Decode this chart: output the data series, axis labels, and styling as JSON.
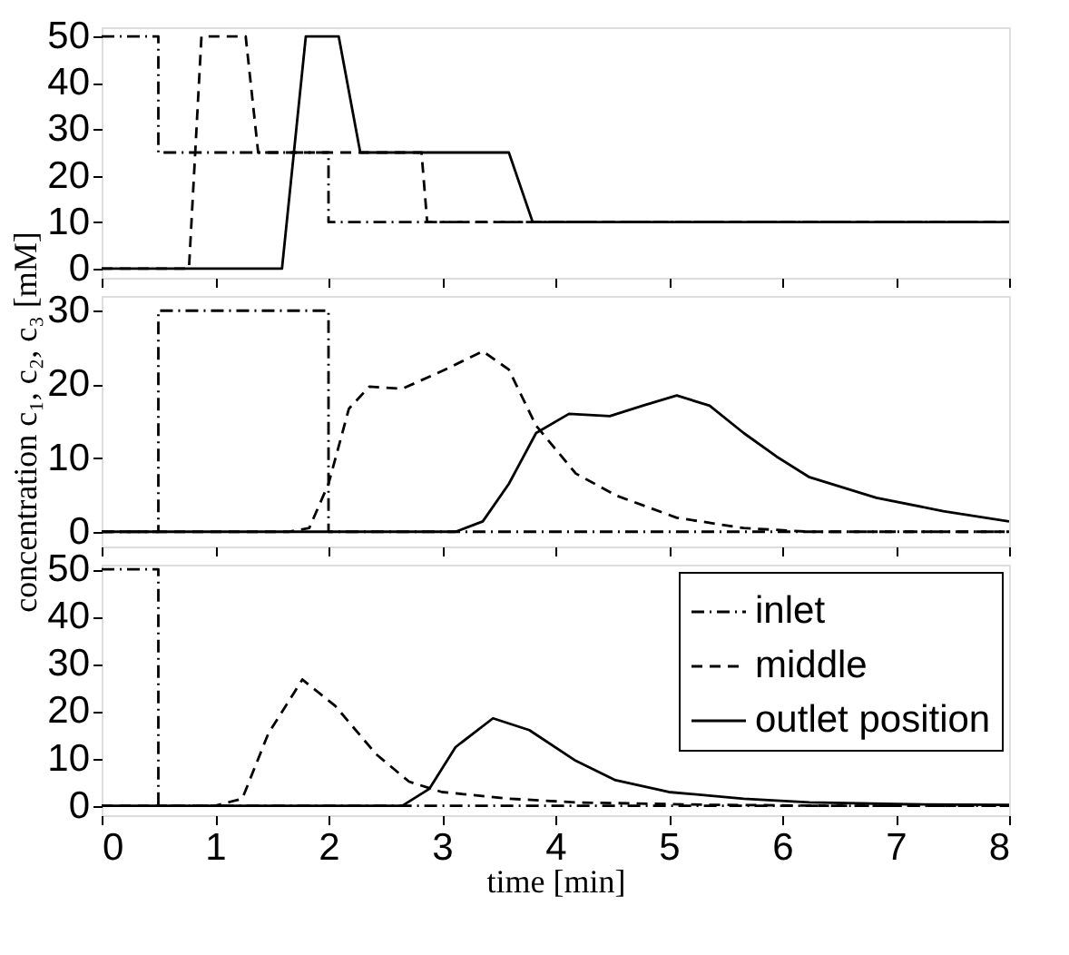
{
  "chart_data": [
    {
      "type": "line",
      "xlim": [
        0,
        8
      ],
      "xticks": [
        0,
        1,
        2,
        3,
        4,
        5,
        6,
        7,
        8
      ],
      "ylim": [
        -2,
        52
      ],
      "yticks": [
        0,
        10,
        20,
        30,
        40,
        50
      ],
      "tick_labels": "y",
      "grid": false,
      "series": [
        {
          "color": "#000000",
          "line_style": "dashdot",
          "x": [
            0,
            0.5,
            0.5,
            2,
            2,
            8
          ],
          "values": [
            50,
            50,
            25,
            25,
            10,
            10
          ]
        },
        {
          "color": "#000000",
          "line_style": "dashed",
          "x": [
            0,
            0.77,
            0.88,
            1.27,
            1.38,
            2.82,
            2.87,
            8
          ],
          "values": [
            0,
            0,
            50,
            50,
            25,
            25,
            10,
            10
          ]
        },
        {
          "color": "#000000",
          "line_style": "solid",
          "x": [
            0,
            1.59,
            1.8,
            2.09,
            2.28,
            3.59,
            3.8,
            8
          ],
          "values": [
            0,
            0,
            50,
            50,
            25,
            25,
            10,
            10
          ]
        }
      ]
    },
    {
      "type": "line",
      "xlim": [
        0,
        8
      ],
      "xticks": [
        0,
        1,
        2,
        3,
        4,
        5,
        6,
        7,
        8
      ],
      "ylim": [
        -2,
        32
      ],
      "yticks": [
        0,
        10,
        20,
        30
      ],
      "tick_labels": "y",
      "grid": false,
      "ylabel": "concentration c₁, c₂, c₃ [mM]",
      "series": [
        {
          "color": "#000000",
          "line_style": "dashdot",
          "x": [
            0,
            0.5,
            0.5,
            2,
            2,
            8
          ],
          "values": [
            0,
            0,
            30,
            30,
            0,
            0
          ]
        },
        {
          "color": "#000000",
          "line_style": "dashed",
          "x": [
            0,
            1.65,
            1.83,
            2.0,
            2.18,
            2.36,
            2.65,
            3.0,
            3.36,
            3.59,
            3.83,
            4.18,
            4.54,
            5.07,
            5.66,
            6.24,
            8
          ],
          "values": [
            0,
            0,
            0.5,
            6.5,
            16.7,
            19.7,
            19.4,
            21.8,
            24.5,
            22,
            14.4,
            7.9,
            4.9,
            1.9,
            0.5,
            0,
            0
          ]
        },
        {
          "color": "#000000",
          "line_style": "solid",
          "x": [
            0,
            3.12,
            3.36,
            3.59,
            3.83,
            4.12,
            4.48,
            4.77,
            5.07,
            5.36,
            5.66,
            5.95,
            6.24,
            6.83,
            7.42,
            8
          ],
          "values": [
            0,
            0,
            1.4,
            6.5,
            13.4,
            16,
            15.7,
            17.1,
            18.5,
            17.1,
            13.4,
            10.2,
            7.4,
            4.6,
            2.8,
            1.4
          ]
        }
      ]
    },
    {
      "type": "line",
      "xlim": [
        0,
        8
      ],
      "xticks": [
        0,
        1,
        2,
        3,
        4,
        5,
        6,
        7,
        8
      ],
      "ylim": [
        -2,
        51
      ],
      "yticks": [
        0,
        10,
        20,
        30,
        40,
        50
      ],
      "grid": false,
      "xlabel": "time [min]",
      "legend": "top right",
      "series": [
        {
          "name": "inlet",
          "color": "#000000",
          "line_style": "dashdot",
          "x": [
            0,
            0.5,
            0.5,
            8
          ],
          "values": [
            50,
            50,
            0,
            0
          ]
        },
        {
          "name": "middle",
          "color": "#000000",
          "line_style": "dashed",
          "x": [
            0,
            1.0,
            1.24,
            1.47,
            1.77,
            2.06,
            2.42,
            2.71,
            3.0,
            3.59,
            4.18,
            5.36,
            6.4,
            8
          ],
          "values": [
            0,
            0,
            1.5,
            15.3,
            26.7,
            21.1,
            10.9,
            5.1,
            2.9,
            1.5,
            0.7,
            0.2,
            0,
            0
          ]
        },
        {
          "name": "outlet position",
          "color": "#000000",
          "line_style": "solid",
          "x": [
            0,
            2.65,
            2.89,
            3.12,
            3.45,
            3.77,
            4.18,
            4.53,
            5.0,
            5.66,
            6.24,
            7.12,
            8
          ],
          "values": [
            0,
            0,
            3.6,
            12.4,
            18.5,
            16,
            9.5,
            5.4,
            2.9,
            1.5,
            0.7,
            0.3,
            0.2
          ]
        }
      ]
    }
  ]
}
